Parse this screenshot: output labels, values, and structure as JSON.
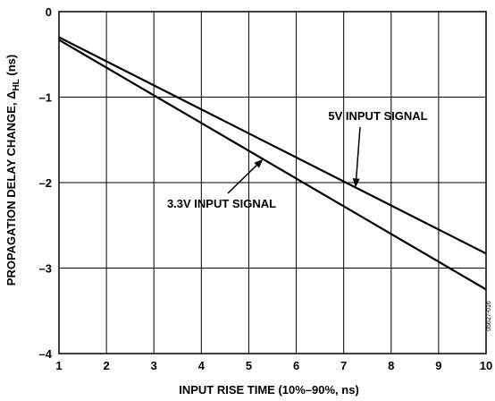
{
  "chart_data": {
    "type": "line",
    "xlabel": "INPUT RISE TIME (10%–90%, ns)",
    "ylabel": {
      "main": "PROPAGATION DELAY CHANGE, Δ",
      "subscript": "HL",
      "unit": " (ns)"
    },
    "xlim": [
      1,
      10
    ],
    "ylim": [
      -4,
      0
    ],
    "x_ticks": [
      "1",
      "2",
      "3",
      "4",
      "5",
      "6",
      "7",
      "8",
      "9",
      "10"
    ],
    "y_ticks": [
      "0",
      "–1",
      "–2",
      "–3",
      "–4"
    ],
    "grid": true,
    "series": [
      {
        "name": "5V INPUT SIGNAL",
        "x": [
          1,
          10
        ],
        "y": [
          -0.3,
          -2.83
        ]
      },
      {
        "name": "3.3V INPUT SIGNAL",
        "x": [
          1,
          10
        ],
        "y": [
          -0.33,
          -3.25
        ]
      }
    ],
    "annotations": [
      {
        "text": "5V INPUT SIGNAL",
        "series": 0,
        "point_x": 7.25
      },
      {
        "text": "3.3V INPUT SIGNAL",
        "series": 1,
        "point_x": 5.3
      }
    ],
    "figure_id": "05627-016"
  }
}
